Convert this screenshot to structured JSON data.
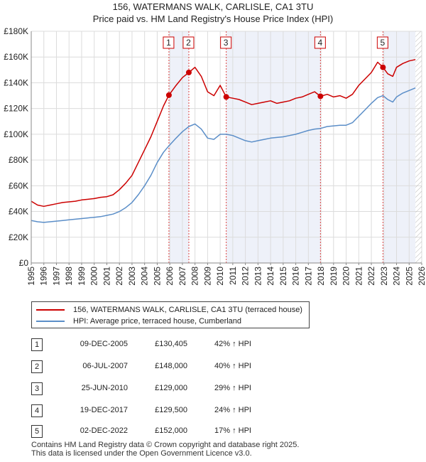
{
  "chart_data": {
    "type": "line",
    "title": "156, WATERMANS WALK, CARLISLE, CA1 3TU",
    "subtitle": "Price paid vs. HM Land Registry's House Price Index (HPI)",
    "xlim": [
      1995,
      2026
    ],
    "ylim": [
      0,
      180000
    ],
    "x_ticks": [
      "1995",
      "1996",
      "1997",
      "1998",
      "1999",
      "2000",
      "2001",
      "2002",
      "2003",
      "2004",
      "2005",
      "2006",
      "2007",
      "2008",
      "2009",
      "2010",
      "2011",
      "2012",
      "2013",
      "2014",
      "2015",
      "2016",
      "2017",
      "2018",
      "2019",
      "2020",
      "2021",
      "2022",
      "2023",
      "2024",
      "2025",
      "2026"
    ],
    "y_ticks": [
      {
        "value": 0,
        "label": "£0"
      },
      {
        "value": 20000,
        "label": "£20K"
      },
      {
        "value": 40000,
        "label": "£40K"
      },
      {
        "value": 60000,
        "label": "£60K"
      },
      {
        "value": 80000,
        "label": "£80K"
      },
      {
        "value": 100000,
        "label": "£100K"
      },
      {
        "value": 120000,
        "label": "£120K"
      },
      {
        "value": 140000,
        "label": "£140K"
      },
      {
        "value": 160000,
        "label": "£160K"
      },
      {
        "value": 180000,
        "label": "£180K"
      }
    ],
    "series": [
      {
        "name": "156, WATERMANS WALK, CARLISLE, CA1 3TU (terraced house)",
        "color": "#cc0000",
        "x": [
          1995.0,
          1995.5,
          1996.0,
          1996.5,
          1997.0,
          1997.5,
          1998.0,
          1998.5,
          1999.0,
          1999.5,
          2000.0,
          2000.5,
          2001.0,
          2001.5,
          2002.0,
          2002.5,
          2003.0,
          2003.5,
          2004.0,
          2004.5,
          2005.0,
          2005.5,
          2005.93,
          2006.5,
          2007.0,
          2007.51,
          2008.0,
          2008.5,
          2009.0,
          2009.5,
          2010.0,
          2010.48,
          2011.0,
          2011.5,
          2012.0,
          2012.5,
          2013.0,
          2013.5,
          2014.0,
          2014.5,
          2015.0,
          2015.5,
          2016.0,
          2016.5,
          2017.0,
          2017.5,
          2017.96,
          2018.5,
          2019.0,
          2019.5,
          2020.0,
          2020.5,
          2021.0,
          2021.5,
          2022.0,
          2022.5,
          2022.92,
          2023.3,
          2023.7,
          2024.0,
          2024.5,
          2025.0,
          2025.5
        ],
        "values": [
          48000,
          45000,
          44000,
          45000,
          46000,
          47000,
          47500,
          48000,
          49000,
          49500,
          50000,
          51000,
          51500,
          53000,
          57000,
          62000,
          68000,
          78000,
          88000,
          98000,
          110000,
          122000,
          130405,
          138000,
          144000,
          148000,
          152000,
          145000,
          133000,
          130000,
          138000,
          129000,
          128000,
          127000,
          125000,
          123000,
          124000,
          125000,
          126000,
          124000,
          125000,
          126000,
          128000,
          129000,
          131000,
          133000,
          129500,
          131000,
          129000,
          130000,
          128000,
          131000,
          138000,
          143000,
          148000,
          156000,
          152000,
          147000,
          145000,
          152000,
          155000,
          157000,
          158000
        ]
      },
      {
        "name": "HPI: Average price, terraced house, Cumberland",
        "color": "#5b8ec8",
        "x": [
          1995.0,
          1995.5,
          1996.0,
          1996.5,
          1997.0,
          1997.5,
          1998.0,
          1998.5,
          1999.0,
          1999.5,
          2000.0,
          2000.5,
          2001.0,
          2001.5,
          2002.0,
          2002.5,
          2003.0,
          2003.5,
          2004.0,
          2004.5,
          2005.0,
          2005.5,
          2005.93,
          2006.5,
          2007.0,
          2007.51,
          2008.0,
          2008.5,
          2009.0,
          2009.5,
          2010.0,
          2010.48,
          2011.0,
          2011.5,
          2012.0,
          2012.5,
          2013.0,
          2013.5,
          2014.0,
          2014.5,
          2015.0,
          2015.5,
          2016.0,
          2016.5,
          2017.0,
          2017.5,
          2017.96,
          2018.5,
          2019.0,
          2019.5,
          2020.0,
          2020.5,
          2021.0,
          2021.5,
          2022.0,
          2022.5,
          2022.92,
          2023.3,
          2023.7,
          2024.0,
          2024.5,
          2025.0,
          2025.5
        ],
        "values": [
          33000,
          32000,
          31500,
          32000,
          32500,
          33000,
          33500,
          34000,
          34500,
          35000,
          35500,
          36000,
          37000,
          38000,
          40000,
          43000,
          47000,
          53000,
          60000,
          68000,
          78000,
          86000,
          91000,
          97000,
          102000,
          106000,
          108000,
          104000,
          97000,
          96000,
          100000,
          100000,
          99000,
          97000,
          95000,
          94000,
          95000,
          96000,
          97000,
          97500,
          98000,
          99000,
          100000,
          101500,
          103000,
          104000,
          104500,
          106000,
          106500,
          107000,
          107000,
          109000,
          114000,
          119000,
          124000,
          128500,
          130000,
          127000,
          125000,
          129000,
          132000,
          134000,
          136000
        ]
      }
    ],
    "sales": [
      {
        "n": "1",
        "x": 2005.93,
        "price": 130405
      },
      {
        "n": "2",
        "x": 2007.51,
        "price": 148000
      },
      {
        "n": "3",
        "x": 2010.48,
        "price": 129000
      },
      {
        "n": "4",
        "x": 2017.96,
        "price": 129500
      },
      {
        "n": "5",
        "x": 2022.92,
        "price": 152000
      }
    ],
    "shaded_spans": [
      [
        2005.93,
        2007.51
      ],
      [
        2010.48,
        2017.96
      ],
      [
        2022.92,
        2025.5
      ]
    ],
    "future_hatch_start": 2025.5
  },
  "legend": {
    "items": [
      {
        "label": "156, WATERMANS WALK, CARLISLE, CA1 3TU (terraced house)",
        "color": "#cc0000"
      },
      {
        "label": "HPI: Average price, terraced house, Cumberland",
        "color": "#5b8ec8"
      }
    ]
  },
  "table": {
    "rows": [
      {
        "n": "1",
        "date": "09-DEC-2005",
        "price": "£130,405",
        "hpi": "42% ↑ HPI"
      },
      {
        "n": "2",
        "date": "06-JUL-2007",
        "price": "£148,000",
        "hpi": "40% ↑ HPI"
      },
      {
        "n": "3",
        "date": "25-JUN-2010",
        "price": "£129,000",
        "hpi": "29% ↑ HPI"
      },
      {
        "n": "4",
        "date": "19-DEC-2017",
        "price": "£129,500",
        "hpi": "24% ↑ HPI"
      },
      {
        "n": "5",
        "date": "02-DEC-2022",
        "price": "£152,000",
        "hpi": "17% ↑ HPI"
      }
    ]
  },
  "footer": {
    "line1": "Contains HM Land Registry data © Crown copyright and database right 2025.",
    "line2": "This data is licensed under the Open Government Licence v3.0."
  }
}
